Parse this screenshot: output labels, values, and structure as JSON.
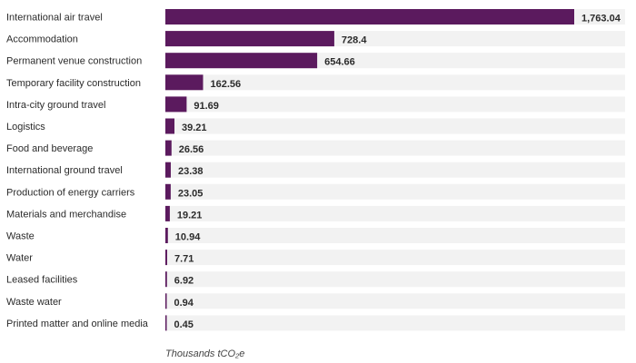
{
  "chart_data": {
    "type": "bar",
    "orientation": "horizontal",
    "categories": [
      "International air travel",
      "Accommodation",
      "Permanent venue construction",
      "Temporary facility construction",
      "Intra-city ground travel",
      "Logistics",
      "Food and beverage",
      "International ground travel",
      "Production of energy carriers",
      "Materials and merchandise",
      "Waste",
      "Water",
      "Leased facilities",
      "Waste water",
      "Printed matter and online media"
    ],
    "values": [
      1763.04,
      728.4,
      654.66,
      162.56,
      91.69,
      39.21,
      26.56,
      23.38,
      23.05,
      19.21,
      10.94,
      7.71,
      6.92,
      0.94,
      0.45
    ],
    "value_labels": [
      "1,763.04",
      "728.4",
      "654.66",
      "162.56",
      "91.69",
      "39.21",
      "26.56",
      "23.38",
      "23.05",
      "19.21",
      "10.94",
      "7.71",
      "6.92",
      "0.94",
      "0.45"
    ],
    "xlabel": "Thousands tCO₂e",
    "xlim": [
      0,
      1763.04
    ],
    "grid": false,
    "legend": "none",
    "colors": {
      "bar": "#5b1a5e",
      "track": "#f2f2f2"
    }
  }
}
